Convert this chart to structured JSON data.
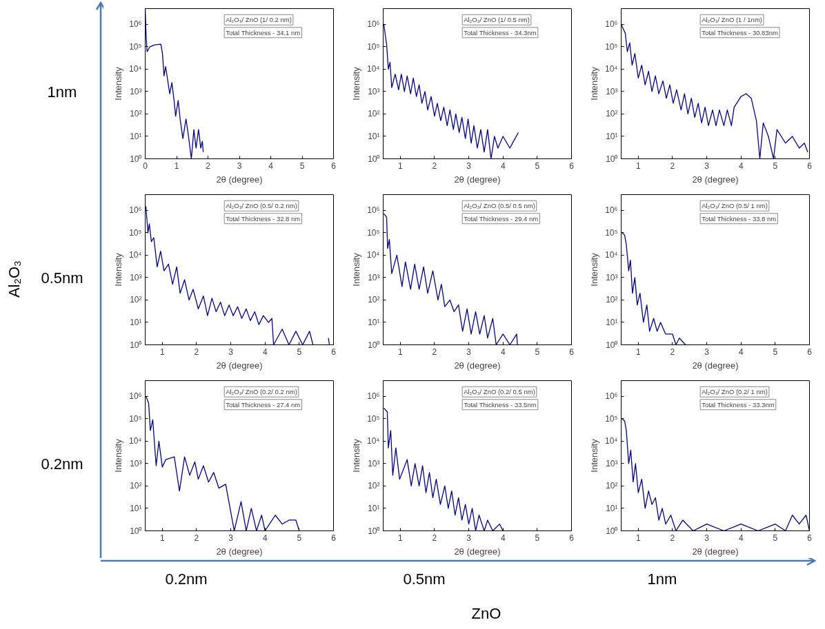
{
  "chart_data": [
    {
      "type": "line",
      "xlabel": "2θ (degree)",
      "ylabel": "Intensity",
      "annotations": [
        "Al₂O₃/ ZnO (1/ 0.2 nm)",
        "Total Thickness - 34.1 nm"
      ],
      "log": true,
      "grid": false,
      "xlim": [
        0,
        6
      ],
      "xticks": [
        0,
        1,
        2,
        3,
        4,
        5,
        6
      ],
      "ylim": [
        1,
        5000000
      ],
      "yticks": [
        {
          "value": 1,
          "label": "10⁰"
        },
        {
          "value": 10,
          "label": "10¹"
        },
        {
          "value": 100,
          "label": "10²"
        },
        {
          "value": 1000,
          "label": "10³"
        },
        {
          "value": 10000,
          "label": "10⁴"
        },
        {
          "value": 100000,
          "label": "10⁵"
        },
        {
          "value": 1000000,
          "label": "10⁶"
        }
      ],
      "series": [
        {
          "color": "#000080",
          "x": [
            0,
            0.03,
            0.06,
            0.15,
            0.3,
            0.5,
            0.55,
            0.6,
            0.65,
            0.72,
            0.78,
            0.85,
            0.92,
            0.97,
            1.05,
            1.12,
            1.2,
            1.3,
            1.38,
            1.47,
            1.55,
            1.62,
            1.7,
            1.77,
            1.82,
            1.85
          ],
          "values": [
            5000000,
            300000,
            60000,
            100000,
            120000,
            130000,
            50000,
            5000,
            13000,
            3000,
            800,
            2500,
            400,
            80,
            400,
            50,
            8,
            60,
            10,
            1,
            20,
            3,
            20,
            3,
            6,
            2
          ]
        }
      ]
    },
    {
      "type": "line",
      "xlabel": "2θ (degree)",
      "ylabel": "Intensity",
      "annotations": [
        "Al₂O₃/ ZnO (1/ 0.5 nm)",
        "Total Thickness - 34.3nm"
      ],
      "log": true,
      "grid": false,
      "xlim": [
        0.5,
        6
      ],
      "xticks": [
        1,
        2,
        3,
        4,
        5,
        6
      ],
      "ylim": [
        1,
        5000000
      ],
      "yticks": [
        {
          "value": 1,
          "label": "10⁰"
        },
        {
          "value": 10,
          "label": "10¹"
        },
        {
          "value": 100,
          "label": "10²"
        },
        {
          "value": 1000,
          "label": "10³"
        },
        {
          "value": 10000,
          "label": "10⁴"
        },
        {
          "value": 100000,
          "label": "10⁵"
        },
        {
          "value": 1000000,
          "label": "10⁶"
        }
      ],
      "series": [
        {
          "color": "#000080",
          "x": [
            0.52,
            0.58,
            0.6,
            0.65,
            0.7,
            0.75,
            0.85,
            0.95,
            1.03,
            1.12,
            1.2,
            1.3,
            1.38,
            1.47,
            1.55,
            1.63,
            1.72,
            1.8,
            1.9,
            2.0,
            2.08,
            2.18,
            2.27,
            2.37,
            2.45,
            2.55,
            2.62,
            2.72,
            2.8,
            2.9,
            2.98,
            3.07,
            3.15,
            3.25,
            3.35,
            3.45,
            3.55,
            3.65,
            3.75,
            3.85,
            4.0,
            4.2,
            4.35,
            4.45
          ],
          "values": [
            1000000,
            200000,
            130000,
            10000,
            20000,
            1500,
            6000,
            1200,
            6000,
            1000,
            5000,
            800,
            4000,
            600,
            2000,
            300,
            1000,
            150,
            600,
            80,
            300,
            50,
            200,
            30,
            150,
            20,
            100,
            15,
            70,
            8,
            60,
            5,
            30,
            3,
            20,
            2,
            20,
            1,
            10,
            3,
            10,
            3,
            8,
            15
          ]
        }
      ]
    },
    {
      "type": "line",
      "xlabel": "2θ (degree)",
      "ylabel": "Intensity",
      "annotations": [
        "Al₂O₃/ ZnO (1 / 1nm)",
        "Total Thickness - 30.83nm"
      ],
      "log": true,
      "grid": false,
      "xlim": [
        0.5,
        6
      ],
      "xticks": [
        1,
        2,
        3,
        4,
        5,
        6
      ],
      "ylim": [
        1,
        5000000
      ],
      "yticks": [
        {
          "value": 1,
          "label": "10⁰"
        },
        {
          "value": 10,
          "label": "10¹"
        },
        {
          "value": 100,
          "label": "10²"
        },
        {
          "value": 1000,
          "label": "10³"
        },
        {
          "value": 10000,
          "label": "10⁴"
        },
        {
          "value": 100000,
          "label": "10⁵"
        },
        {
          "value": 1000000,
          "label": "10⁶"
        }
      ],
      "series": [
        {
          "color": "#000080",
          "x": [
            0.5,
            0.62,
            0.68,
            0.75,
            0.82,
            0.9,
            1.0,
            1.1,
            1.2,
            1.3,
            1.4,
            1.5,
            1.6,
            1.72,
            1.82,
            1.92,
            2.02,
            2.12,
            2.25,
            2.35,
            2.45,
            2.55,
            2.65,
            2.75,
            2.85,
            2.95,
            3.05,
            3.17,
            3.27,
            3.37,
            3.5,
            3.6,
            3.72,
            3.8,
            4.0,
            4.15,
            4.3,
            4.45,
            4.55,
            4.65,
            4.8,
            4.95,
            5.05,
            5.3,
            5.5,
            5.7,
            5.85,
            5.95
          ],
          "values": [
            1000000,
            400000,
            60000,
            150000,
            15000,
            50000,
            4000,
            15000,
            2000,
            8000,
            1000,
            5000,
            800,
            3000,
            500,
            2000,
            300,
            1200,
            150,
            800,
            100,
            500,
            70,
            300,
            40,
            200,
            30,
            150,
            30,
            150,
            30,
            150,
            30,
            200,
            600,
            800,
            500,
            50,
            1,
            40,
            10,
            1,
            20,
            5,
            10,
            3,
            5,
            2
          ]
        }
      ]
    },
    {
      "type": "line",
      "xlabel": "2θ (degree)",
      "ylabel": "Intensity",
      "annotations": [
        "Al₂O₃/ ZnO (0.5/ 0.2 nm)",
        "Total Thickness - 32.8 nm"
      ],
      "log": true,
      "grid": false,
      "xlim": [
        0.5,
        6
      ],
      "xticks": [
        1,
        2,
        3,
        4,
        5,
        6
      ],
      "ylim": [
        1,
        5000000
      ],
      "yticks": [
        {
          "value": 1,
          "label": "10⁰"
        },
        {
          "value": 10,
          "label": "10¹"
        },
        {
          "value": 100,
          "label": "10²"
        },
        {
          "value": 1000,
          "label": "10³"
        },
        {
          "value": 10000,
          "label": "10⁴"
        },
        {
          "value": 100000,
          "label": "10⁵"
        },
        {
          "value": 1000000,
          "label": "10⁶"
        }
      ],
      "series": [
        {
          "color": "#000080",
          "x": [
            0.52,
            0.58,
            0.62,
            0.68,
            0.75,
            0.85,
            0.95,
            1.05,
            1.18,
            1.3,
            1.42,
            1.52,
            1.65,
            1.78,
            1.9,
            2.05,
            2.2,
            2.32,
            2.45,
            2.57,
            2.7,
            2.82,
            2.95,
            3.07,
            3.2,
            3.32,
            3.45,
            3.57,
            3.7,
            3.82,
            3.95,
            4.1,
            4.2,
            4.25,
            4.5,
            4.7,
            4.9,
            5.1,
            5.3,
            5.4,
            5.6,
            5.85,
            5.88
          ],
          "values": [
            1500000,
            100000,
            250000,
            40000,
            60000,
            3000,
            15000,
            2000,
            4000,
            500,
            3000,
            200,
            800,
            100,
            300,
            40,
            150,
            20,
            120,
            30,
            80,
            20,
            60,
            20,
            50,
            15,
            40,
            12,
            30,
            8,
            20,
            10,
            15,
            1,
            5,
            1,
            4,
            1,
            4,
            1,
            null,
            2,
            1
          ]
        }
      ]
    },
    {
      "type": "line",
      "xlabel": "2θ (degree)",
      "ylabel": "Intensity",
      "annotations": [
        "Al₂O₃/ ZnO (0.5/ 0.5 nm)",
        "Total Thickness - 29.4 nm"
      ],
      "log": true,
      "grid": false,
      "xlim": [
        0.5,
        6
      ],
      "xticks": [
        1,
        2,
        3,
        4,
        5,
        6
      ],
      "ylim": [
        1,
        5000000
      ],
      "yticks": [
        {
          "value": 1,
          "label": "10⁰"
        },
        {
          "value": 10,
          "label": "10¹"
        },
        {
          "value": 100,
          "label": "10²"
        },
        {
          "value": 1000,
          "label": "10³"
        },
        {
          "value": 10000,
          "label": "10⁴"
        },
        {
          "value": 100000,
          "label": "10⁵"
        },
        {
          "value": 1000000,
          "label": "10⁶"
        }
      ],
      "series": [
        {
          "color": "#000080",
          "x": [
            0.52,
            0.6,
            0.63,
            0.68,
            0.75,
            0.9,
            1.05,
            1.15,
            1.3,
            1.42,
            1.55,
            1.68,
            1.8,
            1.95,
            2.1,
            2.2,
            2.3,
            2.45,
            2.57,
            2.7,
            2.82,
            2.95,
            3.07,
            3.2,
            3.32,
            3.45,
            3.55,
            3.7,
            3.8,
            4.0,
            4.2,
            4.4,
            4.42
          ],
          "values": [
            700000,
            500000,
            20000,
            50000,
            1500,
            10000,
            400,
            5000,
            300,
            4000,
            300,
            3000,
            200,
            2000,
            100,
            500,
            50,
            100,
            30,
            60,
            4,
            40,
            3,
            30,
            3,
            20,
            2,
            15,
            1,
            3,
            1,
            3,
            1
          ]
        }
      ]
    },
    {
      "type": "line",
      "xlabel": "2θ (degree)",
      "ylabel": "Intensity",
      "annotations": [
        "Al₂O₃/ ZnO (0.5/ 1 nm)",
        "Total Thickness - 33.8 nm"
      ],
      "log": true,
      "grid": false,
      "xlim": [
        0.5,
        6
      ],
      "xticks": [
        1,
        2,
        3,
        4,
        5,
        6
      ],
      "ylim": [
        1,
        5000000
      ],
      "yticks": [
        {
          "value": 1,
          "label": "10⁰"
        },
        {
          "value": 10,
          "label": "10¹"
        },
        {
          "value": 100,
          "label": "10²"
        },
        {
          "value": 1000,
          "label": "10³"
        },
        {
          "value": 10000,
          "label": "10⁴"
        },
        {
          "value": 100000,
          "label": "10⁵"
        },
        {
          "value": 1000000,
          "label": "10⁶"
        }
      ],
      "series": [
        {
          "color": "#000080",
          "x": [
            0.52,
            0.6,
            0.65,
            0.72,
            0.77,
            0.83,
            0.9,
            0.97,
            1.05,
            1.15,
            1.25,
            1.33,
            1.45,
            1.55,
            1.65,
            1.8,
            2.0,
            2.1,
            2.2,
            2.38
          ],
          "values": [
            100000,
            80000,
            30000,
            2000,
            6000,
            200,
            1000,
            60,
            200,
            10,
            60,
            4,
            15,
            4,
            10,
            3,
            3,
            1,
            2,
            1
          ]
        }
      ]
    },
    {
      "type": "line",
      "xlabel": "2θ (degree)",
      "ylabel": "Intensity",
      "annotations": [
        "Al₂O₃/ ZnO (0.2/ 0.2 nm)",
        "Total Thickness - 27.4 nm"
      ],
      "log": true,
      "grid": false,
      "xlim": [
        0.5,
        6
      ],
      "xticks": [
        1,
        2,
        3,
        4,
        5,
        6
      ],
      "ylim": [
        1,
        5000000
      ],
      "yticks": [
        {
          "value": 1,
          "label": "10⁰"
        },
        {
          "value": 10,
          "label": "10¹"
        },
        {
          "value": 100,
          "label": "10²"
        },
        {
          "value": 1000,
          "label": "10³"
        },
        {
          "value": 10000,
          "label": "10⁴"
        },
        {
          "value": 100000,
          "label": "10⁵"
        },
        {
          "value": 1000000,
          "label": "10⁶"
        }
      ],
      "series": [
        {
          "color": "#000080",
          "x": [
            0.52,
            0.6,
            0.65,
            0.72,
            0.82,
            0.9,
            1.0,
            1.1,
            1.35,
            1.5,
            1.65,
            1.8,
            1.95,
            2.05,
            2.2,
            2.35,
            2.5,
            2.65,
            2.85,
            3.1,
            3.3,
            3.45,
            3.6,
            3.75,
            3.9,
            4.0,
            4.3,
            4.5,
            4.7,
            4.9,
            5.0
          ],
          "values": [
            1000000,
            500000,
            30000,
            90000,
            800,
            10000,
            700,
            1500,
            2000,
            60,
            2000,
            300,
            1200,
            200,
            800,
            150,
            400,
            80,
            120,
            1,
            20,
            1,
            10,
            1,
            5,
            1,
            5,
            2,
            3,
            3,
            1
          ]
        }
      ]
    },
    {
      "type": "line",
      "xlabel": "2θ (degree)",
      "ylabel": "Intensity",
      "annotations": [
        "Al₂O₃/ ZnO (0.2/ 0.5 nm)",
        "Total Thickness - 33.5nm"
      ],
      "log": true,
      "grid": false,
      "xlim": [
        0.5,
        6
      ],
      "xticks": [
        1,
        2,
        3,
        4,
        5,
        6
      ],
      "ylim": [
        1,
        5000000
      ],
      "yticks": [
        {
          "value": 1,
          "label": "10⁰"
        },
        {
          "value": 10,
          "label": "10¹"
        },
        {
          "value": 100,
          "label": "10²"
        },
        {
          "value": 1000,
          "label": "10³"
        },
        {
          "value": 10000,
          "label": "10⁴"
        },
        {
          "value": 100000,
          "label": "10⁵"
        },
        {
          "value": 1000000,
          "label": "10⁶"
        }
      ],
      "series": [
        {
          "color": "#000080",
          "x": [
            0.52,
            0.62,
            0.65,
            0.72,
            0.78,
            0.87,
            0.98,
            1.2,
            1.32,
            1.43,
            1.55,
            1.65,
            1.75,
            1.85,
            1.95,
            2.05,
            2.17,
            2.3,
            2.4,
            2.5,
            2.6,
            2.7,
            2.8,
            2.9,
            3.0,
            3.1,
            3.2,
            3.3,
            3.45,
            3.55,
            3.7,
            3.9,
            4.0
          ],
          "values": [
            300000,
            200000,
            5000,
            30000,
            300,
            5000,
            200,
            1500,
            100,
            1000,
            100,
            800,
            50,
            400,
            30,
            200,
            15,
            100,
            10,
            60,
            5,
            30,
            3,
            15,
            2,
            10,
            1,
            5,
            1,
            3,
            1,
            2,
            1
          ]
        }
      ]
    },
    {
      "type": "line",
      "xlabel": "2θ (degree)",
      "ylabel": "Intensity",
      "annotations": [
        "Al₂O₃/ ZnO (0.2/ 1 nm)",
        "Total Thickness - 33.3nm"
      ],
      "log": true,
      "grid": false,
      "xlim": [
        0.5,
        6
      ],
      "xticks": [
        1,
        2,
        3,
        4,
        5,
        6
      ],
      "ylim": [
        1,
        5000000
      ],
      "yticks": [
        {
          "value": 1,
          "label": "10⁰"
        },
        {
          "value": 10,
          "label": "10¹"
        },
        {
          "value": 100,
          "label": "10²"
        },
        {
          "value": 1000,
          "label": "10³"
        },
        {
          "value": 10000,
          "label": "10⁴"
        },
        {
          "value": 100000,
          "label": "10⁵"
        },
        {
          "value": 1000000,
          "label": "10⁶"
        }
      ],
      "series": [
        {
          "color": "#000080",
          "x": [
            0.52,
            0.6,
            0.65,
            0.72,
            0.78,
            0.85,
            0.92,
            1.0,
            1.1,
            1.2,
            1.3,
            1.4,
            1.5,
            1.6,
            1.7,
            1.8,
            1.95,
            2.1,
            2.3,
            2.6,
            3.0,
            3.5,
            4.0,
            4.5,
            5.0,
            5.3,
            5.5,
            5.7,
            5.9,
            6.0
          ],
          "values": [
            100000,
            80000,
            30000,
            1000,
            4000,
            150,
            1000,
            50,
            200,
            10,
            60,
            15,
            30,
            3,
            10,
            2,
            5,
            1,
            3,
            1,
            2,
            1,
            2,
            1,
            2,
            1,
            5,
            2,
            5,
            1
          ]
        }
      ]
    },
    {
      "type": "other",
      "xlabel": "ZnO",
      "ylabel": "Al₂O₃",
      "categories": [
        "0.2nm",
        "0.5nm",
        "1nm"
      ],
      "y_categories": [
        "1nm",
        "0.5nm",
        "0.2nm"
      ]
    }
  ]
}
